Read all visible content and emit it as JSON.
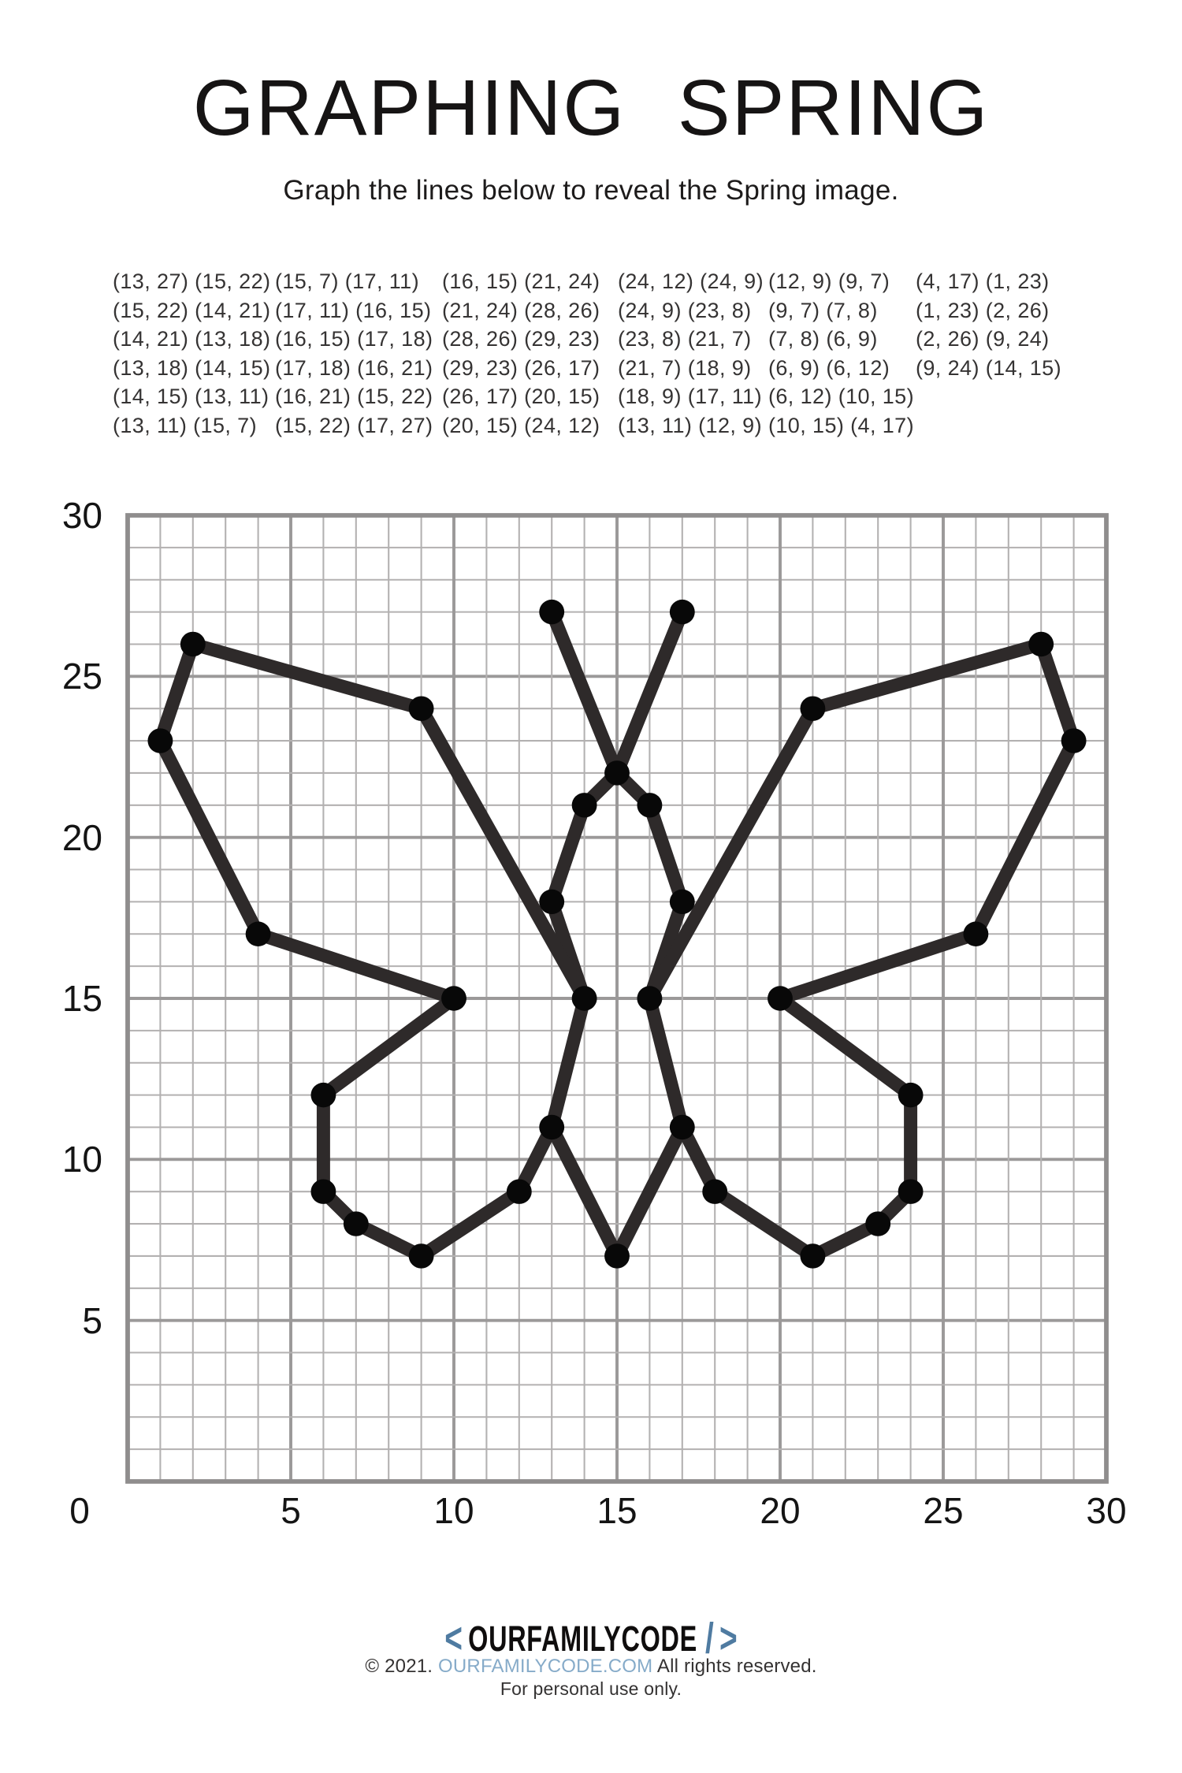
{
  "header": {
    "title": "GRAPHING SPRING",
    "subtitle": "Graph the lines below to reveal the Spring image."
  },
  "coordinates": {
    "columns": [
      [
        [
          [
            13,
            27
          ],
          [
            15,
            22
          ]
        ],
        [
          [
            15,
            22
          ],
          [
            14,
            21
          ]
        ],
        [
          [
            14,
            21
          ],
          [
            13,
            18
          ]
        ],
        [
          [
            13,
            18
          ],
          [
            14,
            15
          ]
        ],
        [
          [
            14,
            15
          ],
          [
            13,
            11
          ]
        ],
        [
          [
            13,
            11
          ],
          [
            15,
            7
          ]
        ]
      ],
      [
        [
          [
            15,
            7
          ],
          [
            17,
            11
          ]
        ],
        [
          [
            17,
            11
          ],
          [
            16,
            15
          ]
        ],
        [
          [
            16,
            15
          ],
          [
            17,
            18
          ]
        ],
        [
          [
            17,
            18
          ],
          [
            16,
            21
          ]
        ],
        [
          [
            16,
            21
          ],
          [
            15,
            22
          ]
        ],
        [
          [
            15,
            22
          ],
          [
            17,
            27
          ]
        ]
      ],
      [
        [
          [
            16,
            15
          ],
          [
            21,
            24
          ]
        ],
        [
          [
            21,
            24
          ],
          [
            28,
            26
          ]
        ],
        [
          [
            28,
            26
          ],
          [
            29,
            23
          ]
        ],
        [
          [
            29,
            23
          ],
          [
            26,
            17
          ]
        ],
        [
          [
            26,
            17
          ],
          [
            20,
            15
          ]
        ],
        [
          [
            20,
            15
          ],
          [
            24,
            12
          ]
        ]
      ],
      [
        [
          [
            24,
            12
          ],
          [
            24,
            9
          ]
        ],
        [
          [
            24,
            9
          ],
          [
            23,
            8
          ]
        ],
        [
          [
            23,
            8
          ],
          [
            21,
            7
          ]
        ],
        [
          [
            21,
            7
          ],
          [
            18,
            9
          ]
        ],
        [
          [
            18,
            9
          ],
          [
            17,
            11
          ]
        ],
        [
          [
            13,
            11
          ],
          [
            12,
            9
          ]
        ]
      ],
      [
        [
          [
            12,
            9
          ],
          [
            9,
            7
          ]
        ],
        [
          [
            9,
            7
          ],
          [
            7,
            8
          ]
        ],
        [
          [
            7,
            8
          ],
          [
            6,
            9
          ]
        ],
        [
          [
            6,
            9
          ],
          [
            6,
            12
          ]
        ],
        [
          [
            6,
            12
          ],
          [
            10,
            15
          ]
        ],
        [
          [
            10,
            15
          ],
          [
            4,
            17
          ]
        ]
      ],
      [
        [
          [
            4,
            17
          ],
          [
            1,
            23
          ]
        ],
        [
          [
            1,
            23
          ],
          [
            2,
            26
          ]
        ],
        [
          [
            2,
            26
          ],
          [
            9,
            24
          ]
        ],
        [
          [
            9,
            24
          ],
          [
            14,
            15
          ]
        ]
      ]
    ]
  },
  "chart_data": {
    "type": "line",
    "title": "Graphing Spring butterfly reveal plot",
    "xlabel": "",
    "ylabel": "",
    "xlim": [
      0,
      30
    ],
    "ylim": [
      0,
      30
    ],
    "x_tick_labels": [
      "0",
      "5",
      "10",
      "15",
      "20",
      "25",
      "30"
    ],
    "y_tick_labels": [
      "0",
      "5",
      "10",
      "15",
      "20",
      "25",
      "30"
    ],
    "grid": "minor every 1 unit, major every 5 units",
    "legend": "none",
    "segments": [
      [
        [
          13,
          27
        ],
        [
          15,
          22
        ]
      ],
      [
        [
          15,
          22
        ],
        [
          14,
          21
        ]
      ],
      [
        [
          14,
          21
        ],
        [
          13,
          18
        ]
      ],
      [
        [
          13,
          18
        ],
        [
          14,
          15
        ]
      ],
      [
        [
          14,
          15
        ],
        [
          13,
          11
        ]
      ],
      [
        [
          13,
          11
        ],
        [
          15,
          7
        ]
      ],
      [
        [
          15,
          7
        ],
        [
          17,
          11
        ]
      ],
      [
        [
          17,
          11
        ],
        [
          16,
          15
        ]
      ],
      [
        [
          16,
          15
        ],
        [
          17,
          18
        ]
      ],
      [
        [
          17,
          18
        ],
        [
          16,
          21
        ]
      ],
      [
        [
          16,
          21
        ],
        [
          15,
          22
        ]
      ],
      [
        [
          15,
          22
        ],
        [
          17,
          27
        ]
      ],
      [
        [
          16,
          15
        ],
        [
          21,
          24
        ]
      ],
      [
        [
          21,
          24
        ],
        [
          28,
          26
        ]
      ],
      [
        [
          28,
          26
        ],
        [
          29,
          23
        ]
      ],
      [
        [
          29,
          23
        ],
        [
          26,
          17
        ]
      ],
      [
        [
          26,
          17
        ],
        [
          20,
          15
        ]
      ],
      [
        [
          20,
          15
        ],
        [
          24,
          12
        ]
      ],
      [
        [
          24,
          12
        ],
        [
          24,
          9
        ]
      ],
      [
        [
          24,
          9
        ],
        [
          23,
          8
        ]
      ],
      [
        [
          23,
          8
        ],
        [
          21,
          7
        ]
      ],
      [
        [
          21,
          7
        ],
        [
          18,
          9
        ]
      ],
      [
        [
          18,
          9
        ],
        [
          17,
          11
        ]
      ],
      [
        [
          13,
          11
        ],
        [
          12,
          9
        ]
      ],
      [
        [
          12,
          9
        ],
        [
          9,
          7
        ]
      ],
      [
        [
          9,
          7
        ],
        [
          7,
          8
        ]
      ],
      [
        [
          7,
          8
        ],
        [
          6,
          9
        ]
      ],
      [
        [
          6,
          9
        ],
        [
          6,
          12
        ]
      ],
      [
        [
          6,
          12
        ],
        [
          10,
          15
        ]
      ],
      [
        [
          10,
          15
        ],
        [
          4,
          17
        ]
      ],
      [
        [
          4,
          17
        ],
        [
          1,
          23
        ]
      ],
      [
        [
          1,
          23
        ],
        [
          2,
          26
        ]
      ],
      [
        [
          2,
          26
        ],
        [
          9,
          24
        ]
      ],
      [
        [
          9,
          24
        ],
        [
          14,
          15
        ]
      ]
    ]
  },
  "axes": {
    "y_labels": [
      "30",
      "25",
      "20",
      "15",
      "10",
      "5"
    ],
    "x_labels": [
      "5",
      "10",
      "15",
      "20",
      "25",
      "30"
    ],
    "origin_label": "0"
  },
  "figure_style": {
    "line_color": "#2e2a2a",
    "dot_color": "#080808",
    "grid_minor_color": "#b3b1b1",
    "grid_major_color": "#9b9999",
    "grid_border_color": "#8f8d8d"
  },
  "footer": {
    "logo_prefix": "<",
    "logo_text": "OURFAMILYCODE",
    "logo_slash": "/",
    "logo_suffix": ">",
    "copyright_prefix": "© 2021. ",
    "copyright_link": "OURFAMILYCODE.COM",
    "copyright_suffix": " All rights reserved.",
    "personal_use": "For personal use only.",
    "accent_color": "#4f7ba1",
    "link_color": "#86abc9"
  }
}
